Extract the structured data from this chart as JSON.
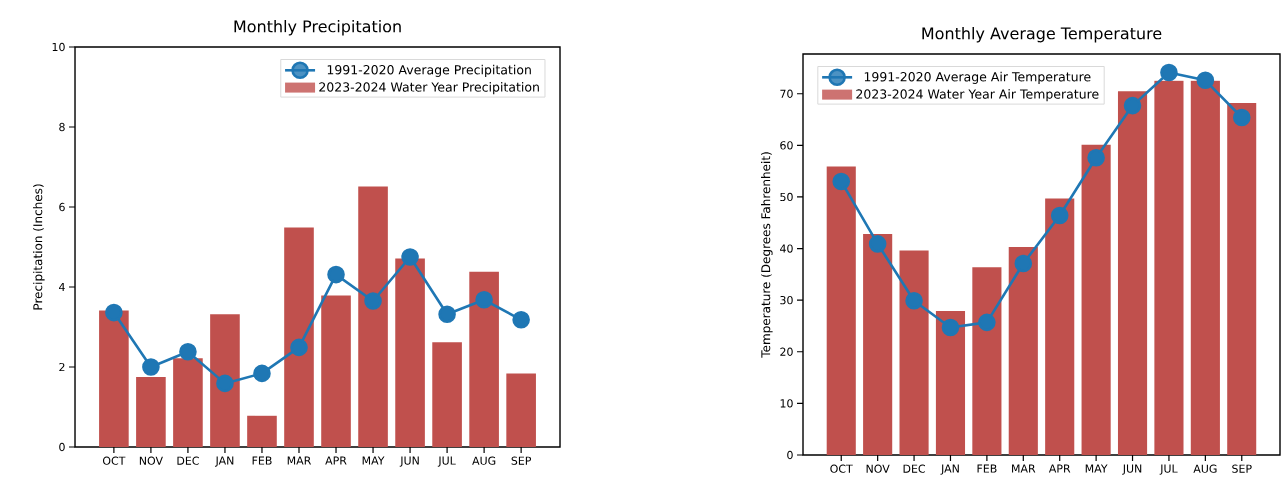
{
  "chart_data": [
    {
      "type": "bar",
      "title": "Monthly Precipitation",
      "ylabel": "Precipitation (Inches)",
      "categories": [
        "OCT",
        "NOV",
        "DEC",
        "JAN",
        "FEB",
        "MAR",
        "APR",
        "MAY",
        "JUN",
        "JUL",
        "AUG",
        "SEP"
      ],
      "series": [
        {
          "name": "1991-2020 Average Precipitation",
          "type": "line",
          "color": "#1f77b4",
          "marker": "circle",
          "values": [
            3.36,
            2.0,
            2.38,
            1.59,
            1.84,
            2.49,
            4.31,
            3.65,
            4.75,
            3.32,
            3.68,
            3.18
          ]
        },
        {
          "name": "2023-2024 Water Year Precipitation",
          "color": "#c0504d",
          "values": [
            3.41,
            1.75,
            2.22,
            3.32,
            0.78,
            5.49,
            3.79,
            6.51,
            4.71,
            2.62,
            4.38,
            1.84
          ]
        }
      ],
      "ylim": [
        0,
        10
      ],
      "yticks": [
        0,
        2,
        4,
        6,
        8,
        10
      ],
      "legend": "top right"
    },
    {
      "type": "bar",
      "title": "Monthly Average Temperature",
      "ylabel": "Temperature (Degrees Fahrenheit)",
      "categories": [
        "OCT",
        "NOV",
        "DEC",
        "JAN",
        "FEB",
        "MAR",
        "APR",
        "MAY",
        "JUN",
        "JUL",
        "AUG",
        "SEP"
      ],
      "series": [
        {
          "name": "1991-2020 Average Air Temperature",
          "type": "line",
          "color": "#1f77b4",
          "marker": "circle",
          "values": [
            53.0,
            40.9,
            29.9,
            24.7,
            25.7,
            37.1,
            46.4,
            57.6,
            67.7,
            74.1,
            72.6,
            65.4
          ]
        },
        {
          "name": "2023-2024 Water Year Air Temperature",
          "color": "#c0504d",
          "values": [
            55.9,
            42.8,
            39.6,
            27.9,
            36.4,
            40.3,
            49.7,
            60.1,
            70.5,
            72.5,
            72.5,
            68.2
          ]
        }
      ],
      "ylim": [
        0,
        77.7
      ],
      "yticks": [
        0,
        10,
        20,
        30,
        40,
        50,
        60,
        70
      ],
      "legend": "top left"
    }
  ]
}
